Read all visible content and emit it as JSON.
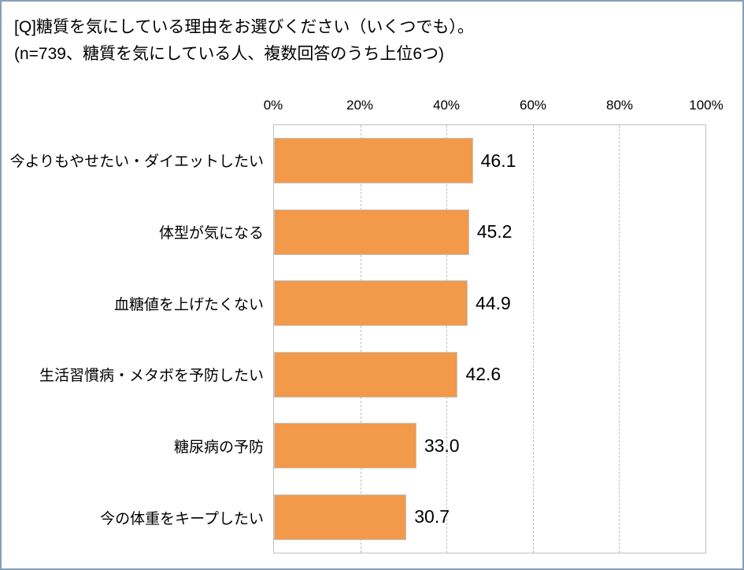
{
  "title": {
    "line1": "[Q]糖質を気にしている理由をお選びください（いくつでも）。",
    "line2": "(n=739、糖質を気にしている人、複数回答のうち上位6つ)"
  },
  "chart_data": {
    "type": "bar",
    "orientation": "horizontal",
    "title": "[Q]糖質を気にしている理由をお選びください（いくつでも）。",
    "subtitle": "(n=739、糖質を気にしている人、複数回答のうち上位6つ)",
    "categories": [
      "今よりもやせたい・ダイエットしたい",
      "体型が気になる",
      "血糖値を上げたくない",
      "生活習慣病・メタボを予防したい",
      "糖尿病の予防",
      "今の体重をキープしたい"
    ],
    "values": [
      46.1,
      45.2,
      44.9,
      42.6,
      33.0,
      30.7
    ],
    "value_labels": [
      "46.1",
      "45.2",
      "44.9",
      "42.6",
      "33.0",
      "30.7"
    ],
    "x_ticks": [
      "0%",
      "20%",
      "40%",
      "60%",
      "80%",
      "100%"
    ],
    "xlim": [
      0,
      100
    ],
    "grid": "vertical-dashed",
    "legend": "none",
    "bar_color": "#F2994A",
    "bar_border_color": "#C6C6C6",
    "plot_border_color": "#BFBFBF",
    "frame_border_color": "#86A0B8"
  }
}
